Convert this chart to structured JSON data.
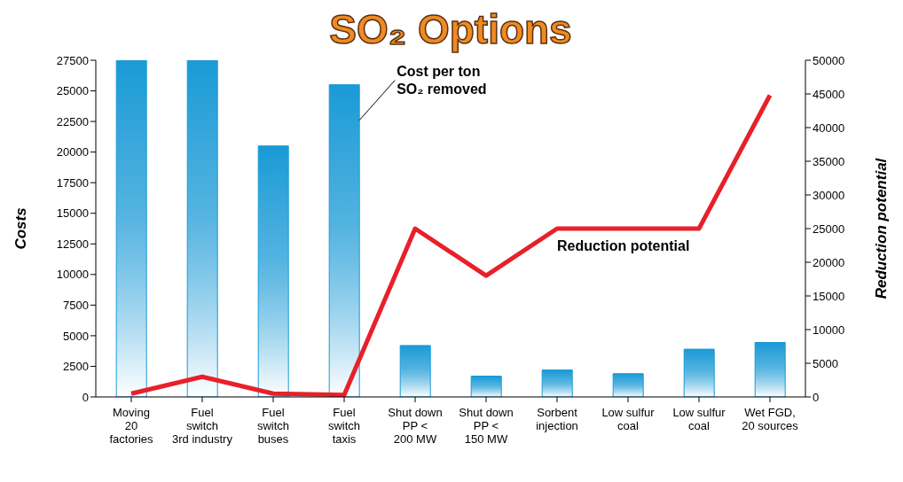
{
  "chart_data": {
    "type": "bar",
    "title": "SO₂ Options",
    "ylabel": "Costs",
    "y2label": "Reduction potential",
    "categories": [
      "Moving\n20\nfactories",
      "Fuel\nswitch\n3rd industry",
      "Fuel\nswitch\nbuses",
      "Fuel\nswitch\ntaxis",
      "Shut down\nPP <\n200 MW",
      "Shut down\nPP <\n150 MW",
      "Sorbent\ninjection",
      "Low sulfur\ncoal",
      "Low sulfur\ncoal",
      "Wet FGD,\n20 sources"
    ],
    "series": [
      {
        "name": "Cost per ton SO₂ removed",
        "color": "#1a9ad6",
        "values": [
          27500,
          27500,
          20500,
          25500,
          4200,
          1700,
          2200,
          1900,
          3900,
          4450
        ]
      },
      {
        "name": "Reduction potential",
        "type": "line",
        "axis": "y2",
        "color": "#e8202a",
        "values": [
          500,
          3000,
          500,
          300,
          25000,
          18000,
          25000,
          25000,
          25000,
          44800
        ]
      }
    ],
    "ylim": [
      0,
      27500
    ],
    "yticks": [
      0,
      2500,
      5000,
      7500,
      10000,
      12500,
      15000,
      17500,
      20000,
      22500,
      25000,
      27500
    ],
    "y2lim": [
      0,
      50000
    ],
    "y2ticks": [
      0,
      5000,
      10000,
      15000,
      20000,
      25000,
      30000,
      35000,
      40000,
      45000,
      50000
    ],
    "grid": false,
    "marker": "none",
    "line_style": "solid"
  }
}
